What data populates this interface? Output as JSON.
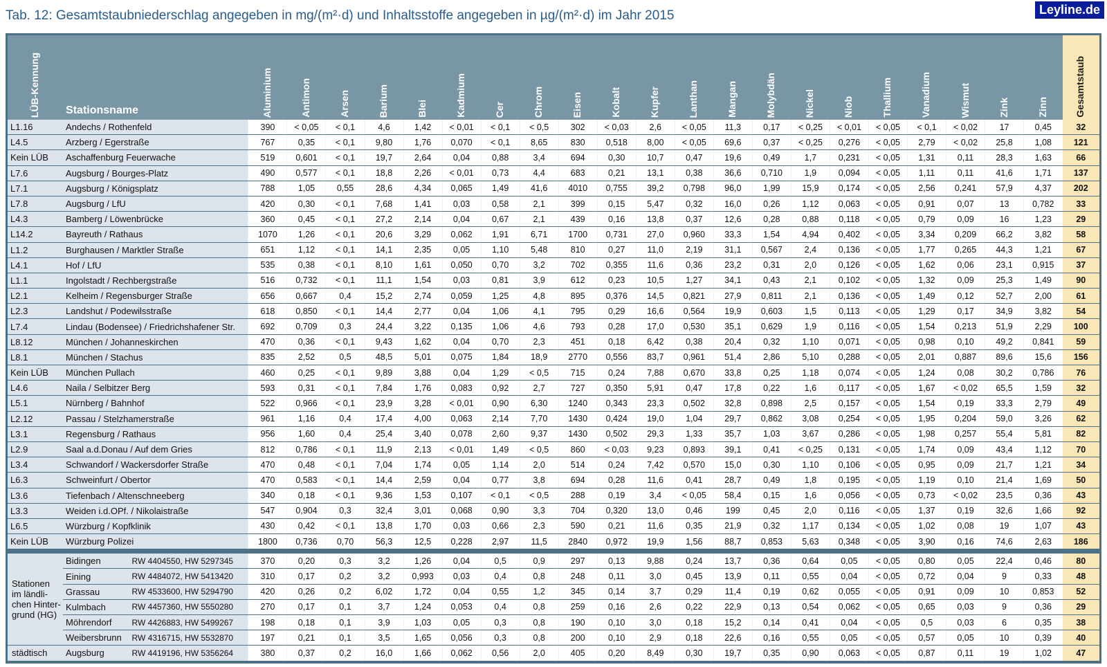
{
  "title": "Tab. 12: Gesamtstaubniederschlag angegeben in mg/(m²·d) und Inhaltsstoffe angegeben in µg/(m²·d) im Jahr 2015",
  "logo": "Leyline.de",
  "headers": {
    "id": "LÜB-Kennung",
    "station": "Stationsname",
    "elements": [
      "Aluminium",
      "Antimon",
      "Arsen",
      "Barium",
      "Blei",
      "Kadmium",
      "Cer",
      "Chrom",
      "Eisen",
      "Kobalt",
      "Kupfer",
      "Lanthan",
      "Mangan",
      "Molybdän",
      "Nickel",
      "Niob",
      "Thallium",
      "Vanadium",
      "Wismut",
      "Zink",
      "Zinn"
    ],
    "total": "Gesamtstaub"
  },
  "rows": [
    {
      "id": "L1.16",
      "name": "Andechs / Rothenfeld",
      "values": [
        "390",
        "< 0,05",
        "< 0,1",
        "4,6",
        "1,42",
        "< 0,01",
        "< 0,1",
        "< 0,5",
        "302",
        "< 0,03",
        "2,6",
        "< 0,05",
        "11,3",
        "0,17",
        "< 0,25",
        "< 0,01",
        "< 0,05",
        "< 0,1",
        "< 0,02",
        "17",
        "0,45"
      ],
      "total": "32"
    },
    {
      "id": "L4.5",
      "name": "Arzberg / Egerstraße",
      "values": [
        "767",
        "0,35",
        "< 0,1",
        "9,80",
        "1,76",
        "0,070",
        "< 0,1",
        "8,65",
        "830",
        "0,518",
        "8,00",
        "< 0,05",
        "69,6",
        "0,37",
        "< 0,25",
        "0,276",
        "< 0,05",
        "2,79",
        "< 0,02",
        "25,8",
        "1,08"
      ],
      "total": "121"
    },
    {
      "id": "Kein LÜB",
      "name": "Aschaffenburg Feuerwache",
      "values": [
        "519",
        "0,601",
        "< 0,1",
        "19,7",
        "2,64",
        "0,04",
        "0,88",
        "3,4",
        "694",
        "0,30",
        "10,7",
        "0,47",
        "19,6",
        "0,49",
        "1,7",
        "0,231",
        "< 0,05",
        "1,31",
        "0,11",
        "28,3",
        "1,63"
      ],
      "total": "66"
    },
    {
      "id": "L7.6",
      "name": "Augsburg / Bourges-Platz",
      "values": [
        "490",
        "0,577",
        "< 0,1",
        "18,8",
        "2,26",
        "< 0,01",
        "0,73",
        "4,4",
        "683",
        "0,21",
        "13,1",
        "0,38",
        "36,6",
        "0,710",
        "1,9",
        "0,094",
        "< 0,05",
        "1,11",
        "0,11",
        "41,6",
        "1,71"
      ],
      "total": "137"
    },
    {
      "id": "L7.1",
      "name": "Augsburg / Königsplatz",
      "values": [
        "788",
        "1,05",
        "0,55",
        "28,6",
        "4,34",
        "0,065",
        "1,49",
        "41,6",
        "4010",
        "0,755",
        "39,2",
        "0,798",
        "96,0",
        "1,99",
        "15,9",
        "0,174",
        "< 0,05",
        "2,56",
        "0,241",
        "57,9",
        "4,37"
      ],
      "total": "202"
    },
    {
      "id": "L7.8",
      "name": "Augsburg / LfU",
      "values": [
        "420",
        "0,30",
        "< 0,1",
        "7,68",
        "1,41",
        "0,03",
        "0,58",
        "2,1",
        "399",
        "0,15",
        "5,47",
        "0,32",
        "16,0",
        "0,26",
        "1,12",
        "0,063",
        "< 0,05",
        "0,91",
        "0,07",
        "13",
        "0,782"
      ],
      "total": "33"
    },
    {
      "id": "L4.3",
      "name": "Bamberg / Löwenbrücke",
      "values": [
        "360",
        "0,45",
        "< 0,1",
        "27,2",
        "2,14",
        "0,04",
        "0,67",
        "2,1",
        "439",
        "0,16",
        "13,8",
        "0,37",
        "12,6",
        "0,28",
        "0,88",
        "0,118",
        "< 0,05",
        "0,79",
        "0,09",
        "16",
        "1,23"
      ],
      "total": "29"
    },
    {
      "id": "L14.2",
      "name": "Bayreuth / Rathaus",
      "values": [
        "1070",
        "1,26",
        "< 0,1",
        "20,6",
        "3,29",
        "0,062",
        "1,91",
        "6,71",
        "1700",
        "0,731",
        "27,0",
        "0,960",
        "33,3",
        "1,54",
        "4,94",
        "0,402",
        "< 0,05",
        "3,34",
        "0,209",
        "66,2",
        "3,82"
      ],
      "total": "58"
    },
    {
      "id": "L1.2",
      "name": "Burghausen / Marktler Straße",
      "values": [
        "651",
        "1,12",
        "< 0,1",
        "14,1",
        "2,35",
        "0,05",
        "1,10",
        "5,48",
        "810",
        "0,27",
        "11,0",
        "2,19",
        "31,1",
        "0,567",
        "2,4",
        "0,136",
        "< 0,05",
        "1,77",
        "0,265",
        "44,3",
        "1,21"
      ],
      "total": "67"
    },
    {
      "id": "L4.1",
      "name": "Hof / LfU",
      "values": [
        "535",
        "0,38",
        "< 0,1",
        "8,10",
        "1,61",
        "0,050",
        "0,70",
        "3,2",
        "702",
        "0,355",
        "11,6",
        "0,36",
        "23,2",
        "0,31",
        "2,0",
        "0,126",
        "< 0,05",
        "1,62",
        "0,06",
        "23,1",
        "0,915"
      ],
      "total": "37"
    },
    {
      "id": "L1.1",
      "name": "Ingolstadt / Rechbergstraße",
      "values": [
        "516",
        "0,732",
        "< 0,1",
        "11,1",
        "1,54",
        "0,03",
        "0,81",
        "3,9",
        "612",
        "0,23",
        "10,5",
        "1,27",
        "34,1",
        "0,43",
        "2,1",
        "0,102",
        "< 0,05",
        "1,32",
        "0,09",
        "25,3",
        "1,49"
      ],
      "total": "90"
    },
    {
      "id": "L2.1",
      "name": "Kelheim / Regensburger Straße",
      "values": [
        "656",
        "0,667",
        "0,4",
        "15,2",
        "2,74",
        "0,059",
        "1,25",
        "4,8",
        "895",
        "0,376",
        "14,5",
        "0,821",
        "27,9",
        "0,811",
        "2,1",
        "0,136",
        "< 0,05",
        "1,49",
        "0,12",
        "52,7",
        "2,00"
      ],
      "total": "61"
    },
    {
      "id": "L2.3",
      "name": "Landshut / Podewilsstraße",
      "values": [
        "618",
        "0,850",
        "< 0,1",
        "14,4",
        "2,77",
        "0,04",
        "1,06",
        "4,1",
        "795",
        "0,29",
        "16,6",
        "0,564",
        "19,9",
        "0,603",
        "1,5",
        "0,113",
        "< 0,05",
        "1,29",
        "0,17",
        "34,9",
        "3,82"
      ],
      "total": "54"
    },
    {
      "id": "L7.4",
      "name": "Lindau (Bodensee) / Friedrichshafener Str.",
      "values": [
        "692",
        "0,709",
        "0,3",
        "24,4",
        "3,22",
        "0,135",
        "1,06",
        "4,6",
        "793",
        "0,28",
        "17,0",
        "0,530",
        "35,1",
        "0,629",
        "1,9",
        "0,116",
        "< 0,05",
        "1,54",
        "0,213",
        "51,9",
        "2,29"
      ],
      "total": "100"
    },
    {
      "id": "L8.12",
      "name": "München / Johanneskirchen",
      "values": [
        "470",
        "0,36",
        "< 0,1",
        "9,43",
        "1,62",
        "0,04",
        "0,70",
        "2,3",
        "451",
        "0,18",
        "6,42",
        "0,38",
        "20,4",
        "0,32",
        "1,10",
        "0,071",
        "< 0,05",
        "0,98",
        "0,10",
        "49,2",
        "0,841"
      ],
      "total": "59"
    },
    {
      "id": "L8.1",
      "name": "München / Stachus",
      "values": [
        "835",
        "2,52",
        "0,5",
        "48,5",
        "5,01",
        "0,075",
        "1,84",
        "18,9",
        "2770",
        "0,556",
        "83,7",
        "0,961",
        "51,4",
        "2,86",
        "5,10",
        "0,288",
        "< 0,05",
        "2,01",
        "0,887",
        "89,6",
        "15,6"
      ],
      "total": "156"
    },
    {
      "id": "Kein LÜB",
      "name": "München Pullach",
      "values": [
        "460",
        "0,25",
        "< 0,1",
        "9,89",
        "3,88",
        "0,04",
        "1,29",
        "< 0,5",
        "715",
        "0,24",
        "7,88",
        "0,670",
        "33,8",
        "0,25",
        "1,18",
        "0,074",
        "< 0,05",
        "1,24",
        "0,08",
        "30,2",
        "0,786"
      ],
      "total": "76"
    },
    {
      "id": "L4.6",
      "name": "Naila / Selbitzer Berg",
      "values": [
        "593",
        "0,31",
        "< 0,1",
        "7,84",
        "1,76",
        "0,083",
        "0,92",
        "2,7",
        "727",
        "0,350",
        "5,91",
        "0,47",
        "17,8",
        "0,22",
        "1,6",
        "0,117",
        "< 0,05",
        "1,67",
        "< 0,02",
        "65,5",
        "1,59"
      ],
      "total": "32"
    },
    {
      "id": "L5.1",
      "name": "Nürnberg / Bahnhof",
      "values": [
        "522",
        "0,966",
        "< 0,1",
        "23,9",
        "3,28",
        "< 0,01",
        "0,90",
        "6,30",
        "1240",
        "0,343",
        "23,3",
        "0,502",
        "32,8",
        "0,898",
        "2,5",
        "0,157",
        "< 0,05",
        "1,54",
        "0,19",
        "33,3",
        "2,79"
      ],
      "total": "49"
    },
    {
      "id": "L2.12",
      "name": "Passau / Stelzhamerstraße",
      "values": [
        "961",
        "1,16",
        "0,4",
        "17,4",
        "4,00",
        "0,063",
        "2,14",
        "7,70",
        "1430",
        "0,424",
        "19,0",
        "1,04",
        "29,7",
        "0,862",
        "3,08",
        "0,254",
        "< 0,05",
        "1,95",
        "0,204",
        "59,0",
        "3,26"
      ],
      "total": "62"
    },
    {
      "id": "L3.1",
      "name": "Regensburg / Rathaus",
      "values": [
        "956",
        "1,60",
        "0,4",
        "25,4",
        "3,40",
        "0,078",
        "2,60",
        "9,37",
        "1430",
        "0,502",
        "29,3",
        "1,33",
        "35,7",
        "1,03",
        "3,67",
        "0,286",
        "< 0,05",
        "1,98",
        "0,257",
        "55,4",
        "5,81"
      ],
      "total": "82"
    },
    {
      "id": "L2.9",
      "name": "Saal a.d.Donau / Auf dem Gries",
      "values": [
        "812",
        "0,786",
        "< 0,1",
        "11,9",
        "2,13",
        "< 0,01",
        "1,49",
        "< 0,5",
        "860",
        "< 0,03",
        "9,23",
        "0,893",
        "39,1",
        "0,41",
        "< 0,25",
        "0,131",
        "< 0,05",
        "1,74",
        "0,09",
        "43,4",
        "1,12"
      ],
      "total": "70"
    },
    {
      "id": "L3.4",
      "name": "Schwandorf / Wackersdorfer Straße",
      "values": [
        "470",
        "0,48",
        "< 0,1",
        "7,04",
        "1,74",
        "0,05",
        "1,14",
        "2,0",
        "514",
        "0,24",
        "7,42",
        "0,570",
        "15,0",
        "0,30",
        "1,10",
        "0,106",
        "< 0,05",
        "0,95",
        "0,09",
        "21,7",
        "1,21"
      ],
      "total": "34"
    },
    {
      "id": "L6.3",
      "name": "Schweinfurt / Obertor",
      "values": [
        "470",
        "0,583",
        "< 0,1",
        "14,4",
        "2,59",
        "0,04",
        "0,77",
        "3,8",
        "694",
        "0,28",
        "11,6",
        "0,41",
        "28,7",
        "0,49",
        "1,8",
        "0,195",
        "< 0,05",
        "1,19",
        "0,10",
        "21,4",
        "1,69"
      ],
      "total": "50"
    },
    {
      "id": "L3.6",
      "name": "Tiefenbach / Altenschneeberg",
      "values": [
        "340",
        "0,18",
        "< 0,1",
        "9,36",
        "1,53",
        "0,107",
        "< 0,1",
        "< 0,5",
        "288",
        "0,19",
        "3,4",
        "< 0,05",
        "58,4",
        "0,15",
        "1,6",
        "0,056",
        "< 0,05",
        "0,73",
        "< 0,02",
        "23,5",
        "0,36"
      ],
      "total": "43"
    },
    {
      "id": "L3.3",
      "name": "Weiden i.d.OPf. / Nikolaistraße",
      "values": [
        "547",
        "0,904",
        "0,3",
        "32,4",
        "3,01",
        "0,068",
        "0,90",
        "3,3",
        "704",
        "0,320",
        "13,0",
        "0,46",
        "199",
        "0,45",
        "2,0",
        "0,116",
        "< 0,05",
        "1,37",
        "0,19",
        "32,6",
        "1,66"
      ],
      "total": "92"
    },
    {
      "id": "L6.5",
      "name": "Würzburg / Kopfklinik",
      "values": [
        "430",
        "0,42",
        "< 0,1",
        "13,8",
        "1,70",
        "0,03",
        "0,66",
        "2,3",
        "590",
        "0,21",
        "11,6",
        "0,35",
        "21,9",
        "0,32",
        "1,17",
        "0,134",
        "< 0,05",
        "1,02",
        "0,08",
        "19",
        "1,07"
      ],
      "total": "43"
    },
    {
      "id": "Kein LÜB",
      "name": "Würzburg Polizei",
      "values": [
        "1800",
        "0,736",
        "0,70",
        "56,3",
        "12,5",
        "0,228",
        "2,97",
        "11,5",
        "2840",
        "0,972",
        "19,9",
        "1,56",
        "88,7",
        "0,853",
        "5,63",
        "0,348",
        "< 0,05",
        "3,90",
        "0,16",
        "74,6",
        "2,63"
      ],
      "total": "186"
    }
  ],
  "background_group_label": "Stationen im ländli-chen Hinter-grund (HG)",
  "background_rows": [
    {
      "name": "Bidingen",
      "coords": "RW 4404550, HW 5297345",
      "values": [
        "370",
        "0,20",
        "0,3",
        "3,2",
        "1,26",
        "0,04",
        "0,5",
        "0,9",
        "297",
        "0,13",
        "9,88",
        "0,24",
        "13,7",
        "0,36",
        "0,64",
        "0,05",
        "< 0,05",
        "0,80",
        "0,05",
        "22,4",
        "0,46"
      ],
      "total": "80"
    },
    {
      "name": "Eining",
      "coords": "RW 4484072, HW 5413420",
      "values": [
        "310",
        "0,17",
        "0,2",
        "3,2",
        "0,993",
        "0,03",
        "0,4",
        "0,8",
        "248",
        "0,11",
        "3,0",
        "0,45",
        "13,9",
        "0,11",
        "0,55",
        "0,04",
        "< 0,05",
        "0,72",
        "0,04",
        "9",
        "0,33"
      ],
      "total": "48"
    },
    {
      "name": "Grassau",
      "coords": "RW 4533600, HW 5294790",
      "values": [
        "420",
        "0,26",
        "0,2",
        "6,02",
        "1,72",
        "0,04",
        "0,55",
        "1,2",
        "345",
        "0,14",
        "3,7",
        "0,29",
        "11,4",
        "0,19",
        "0,62",
        "0,055",
        "< 0,05",
        "0,91",
        "0,09",
        "10",
        "0,853"
      ],
      "total": "52"
    },
    {
      "name": "Kulmbach",
      "coords": "RW 4457360, HW 5550280",
      "values": [
        "270",
        "0,17",
        "0,1",
        "3,7",
        "1,24",
        "0,053",
        "0,4",
        "0,8",
        "259",
        "0,16",
        "2,6",
        "0,22",
        "22,9",
        "0,13",
        "0,54",
        "0,062",
        "< 0,05",
        "0,65",
        "0,03",
        "9",
        "0,36"
      ],
      "total": "29"
    },
    {
      "name": "Möhrendorf",
      "coords": "RW 4426883, HW 5499267",
      "values": [
        "198",
        "0,18",
        "0,1",
        "3,9",
        "1,03",
        "0,05",
        "0,3",
        "0,8",
        "190",
        "0,10",
        "3,0",
        "0,18",
        "15,2",
        "0,14",
        "0,41",
        "0,04",
        "< 0,05",
        "0,5",
        "0,03",
        "6",
        "0,35"
      ],
      "total": "38"
    },
    {
      "name": "Weibersbrunn",
      "coords": "RW 4316715, HW 5532870",
      "values": [
        "197",
        "0,21",
        "0,1",
        "3,5",
        "1,65",
        "0,056",
        "0,3",
        "0,8",
        "200",
        "0,10",
        "2,9",
        "0,18",
        "22,6",
        "0,16",
        "0,55",
        "0,05",
        "< 0,05",
        "0,57",
        "0,05",
        "10",
        "0,39"
      ],
      "total": "40"
    }
  ],
  "urban_row": {
    "group": "städtisch",
    "name": "Augsburg",
    "coords": "RW 4419196, HW 5356264",
    "values": [
      "380",
      "0,37",
      "0,2",
      "16,0",
      "1,66",
      "0,062",
      "0,56",
      "2,0",
      "405",
      "0,20",
      "8,49",
      "0,30",
      "19,7",
      "0,35",
      "0,90",
      "0,063",
      "< 0,05",
      "0,87",
      "0,11",
      "19",
      "1,02"
    ],
    "total": "47"
  }
}
